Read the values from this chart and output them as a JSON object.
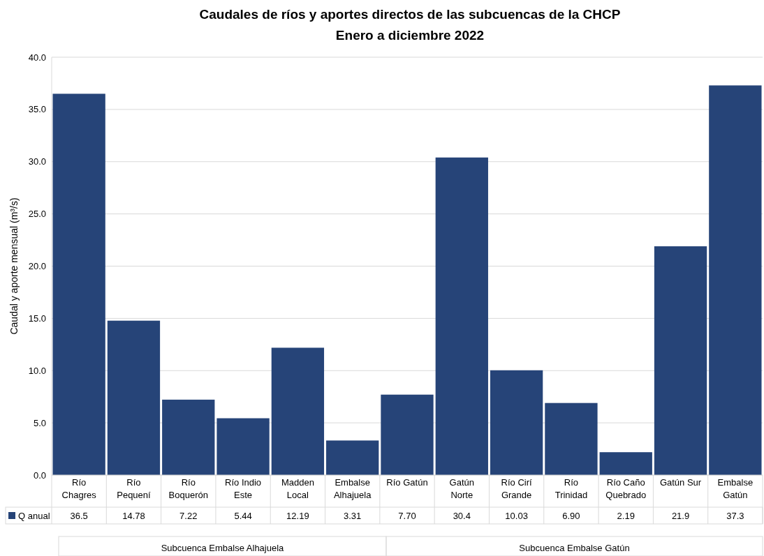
{
  "chart_data": {
    "type": "bar",
    "title": "Caudales de ríos  y aportes directos de las subcuencas de  la CHCP",
    "subtitle": "Enero a diciembre 2022",
    "ylabel": "Caudal y aporte  mensual (m³/s)",
    "categories": [
      "Río Chagres",
      "Río Pequení",
      "Río Boquerón",
      "Río Indio Este",
      "Madden Local",
      "Embalse Alhajuela",
      "Río Gatún",
      "Gatún Norte",
      "Río Cirí Grande",
      "Río Trinidad",
      "Río Caño Quebrado",
      "Gatún Sur",
      "Embalse Gatún"
    ],
    "series": [
      {
        "name": "Q anual",
        "color": "#264478",
        "values": [
          36.5,
          14.78,
          7.22,
          5.44,
          12.19,
          3.31,
          7.7,
          30.4,
          10.03,
          6.9,
          2.19,
          21.9,
          37.3
        ],
        "value_labels": [
          "36.5",
          "14.78",
          "7.22",
          "5.44",
          "12.19",
          "3.31",
          "7.70",
          "30.4",
          "10.03",
          "6.90",
          "2.19",
          "21.9",
          "37.3"
        ]
      }
    ],
    "ylim": [
      0,
      40
    ],
    "yticks": [
      {
        "value": 0,
        "label": "0.0"
      },
      {
        "value": 5,
        "label": "5.0"
      },
      {
        "value": 10,
        "label": "10.0"
      },
      {
        "value": 15,
        "label": "15.0"
      },
      {
        "value": 20,
        "label": "20.0"
      },
      {
        "value": 25,
        "label": "25.0"
      },
      {
        "value": 30,
        "label": "30.0"
      },
      {
        "value": 35,
        "label": "35.0"
      },
      {
        "value": 40,
        "label": "40.0"
      }
    ],
    "grid": "y",
    "legend": "bottom",
    "annotations": [
      "Subcuenca Embalse Alhajuela",
      "Subcuenca Embalse Gatún"
    ]
  }
}
